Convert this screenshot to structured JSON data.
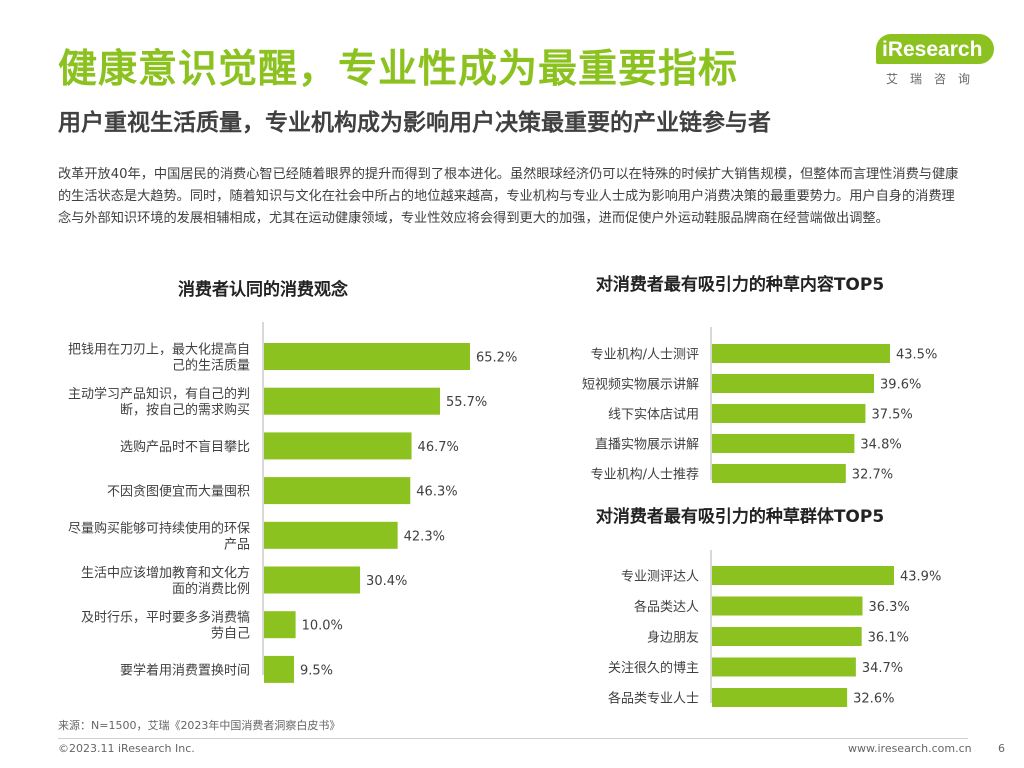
{
  "header": {
    "title": "健康意识觉醒，专业性成为最重要指标",
    "subtitle": "用户重视生活质量，专业机构成为影响用户决策最重要的产业链参与者",
    "logo_text": "iResearch",
    "logo_cn": "艾瑞咨询"
  },
  "intro": "改革开放40年，中国居民的消费心智已经随着眼界的提升而得到了根本进化。虽然眼球经济仍可以在特殊的时候扩大销售规模，但整体而言理性消费与健康的生活状态是大趋势。同时，随着知识与文化在社会中所占的地位越来越高，专业机构与专业人士成为影响用户消费决策的最重要势力。用户自身的消费理念与外部知识环境的发展相辅相成，尤其在运动健康领域，专业性效应将会得到更大的加强，进而促使户外运动鞋服品牌商在经营端做出调整。",
  "colors": {
    "accent": "#8cc220",
    "bar": "#8cc220",
    "text": "#404040",
    "axis": "#b0b0b0"
  },
  "chart_data": [
    {
      "type": "bar",
      "orientation": "horizontal",
      "title": "消费者认同的消费观念",
      "unit": "%",
      "categories": [
        [
          "把钱用在刀刃上，最大化提高自",
          "己的生活质量"
        ],
        [
          "主动学习产品知识，有自己的判",
          "断，按自己的需求购买"
        ],
        [
          "选购产品时不盲目攀比"
        ],
        [
          "不因贪图便宜而大量囤积"
        ],
        [
          "尽量购买能够可持续使用的环保",
          "产品"
        ],
        [
          "生活中应该增加教育和文化方",
          "面的消费比例"
        ],
        [
          "及时行乐，平时要多多消费犒",
          "劳自己"
        ],
        [
          "要学着用消费置换时间"
        ]
      ],
      "values": [
        65.2,
        55.7,
        46.7,
        46.3,
        42.3,
        30.4,
        10.0,
        9.5
      ],
      "labels": [
        "65.2%",
        "55.7%",
        "46.7%",
        "46.3%",
        "42.3%",
        "30.4%",
        "10.0%",
        "9.5%"
      ]
    },
    {
      "type": "bar",
      "orientation": "horizontal",
      "title": "对消费者最有吸引力的种草内容TOP5",
      "unit": "%",
      "categories": [
        [
          "专业机构/人士测评"
        ],
        [
          "短视频实物展示讲解"
        ],
        [
          "线下实体店试用"
        ],
        [
          "直播实物展示讲解"
        ],
        [
          "专业机构/人士推荐"
        ]
      ],
      "values": [
        43.5,
        39.6,
        37.5,
        34.8,
        32.7
      ],
      "labels": [
        "43.5%",
        "39.6%",
        "37.5%",
        "34.8%",
        "32.7%"
      ]
    },
    {
      "type": "bar",
      "orientation": "horizontal",
      "title": "对消费者最有吸引力的种草群体TOP5",
      "unit": "%",
      "categories": [
        [
          "专业测评达人"
        ],
        [
          "各品类达人"
        ],
        [
          "身边朋友"
        ],
        [
          "关注很久的博主"
        ],
        [
          "各品类专业人士"
        ]
      ],
      "values": [
        43.9,
        36.3,
        36.1,
        34.7,
        32.6
      ],
      "labels": [
        "43.9%",
        "36.3%",
        "36.1%",
        "34.7%",
        "32.6%"
      ]
    }
  ],
  "footer": {
    "source": "来源：N=1500，艾瑞《2023年中国消费者洞察白皮书》",
    "copyright": "©2023.11 iResearch Inc.",
    "website": "www.iresearch.com.cn",
    "page": "6"
  }
}
